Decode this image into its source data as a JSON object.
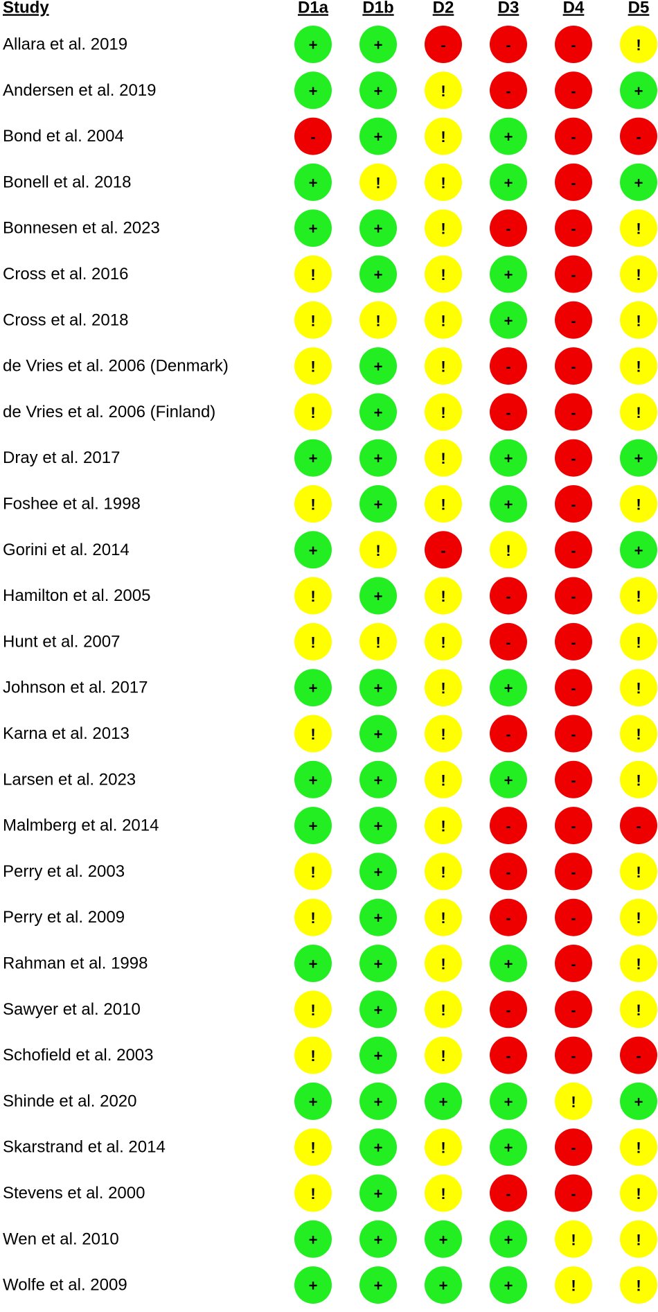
{
  "chart_data": {
    "type": "table",
    "columns": [
      "Study",
      "D1a",
      "D1b",
      "D2",
      "D3",
      "D4",
      "D5"
    ],
    "symbols": {
      "low": "+",
      "some": "!",
      "high": "-"
    },
    "colors": {
      "low": "#22ee22",
      "some": "#ffff00",
      "high": "#ee0000"
    },
    "rows": [
      {
        "study": "Allara et al. 2019",
        "ratings": [
          "low",
          "low",
          "high",
          "high",
          "high",
          "some"
        ]
      },
      {
        "study": "Andersen et al. 2019",
        "ratings": [
          "low",
          "low",
          "some",
          "high",
          "high",
          "low"
        ]
      },
      {
        "study": "Bond et al. 2004",
        "ratings": [
          "high",
          "low",
          "some",
          "low",
          "high",
          "high"
        ]
      },
      {
        "study": "Bonell et al. 2018",
        "ratings": [
          "low",
          "some",
          "some",
          "low",
          "high",
          "low"
        ]
      },
      {
        "study": "Bonnesen et al. 2023",
        "ratings": [
          "low",
          "low",
          "some",
          "high",
          "high",
          "some"
        ]
      },
      {
        "study": "Cross et al. 2016",
        "ratings": [
          "some",
          "low",
          "some",
          "low",
          "high",
          "some"
        ]
      },
      {
        "study": "Cross et al. 2018",
        "ratings": [
          "some",
          "some",
          "some",
          "low",
          "high",
          "some"
        ]
      },
      {
        "study": "de Vries et al. 2006 (Denmark)",
        "ratings": [
          "some",
          "low",
          "some",
          "high",
          "high",
          "some"
        ]
      },
      {
        "study": "de Vries et al. 2006 (Finland)",
        "ratings": [
          "some",
          "low",
          "some",
          "high",
          "high",
          "some"
        ]
      },
      {
        "study": "Dray et al. 2017",
        "ratings": [
          "low",
          "low",
          "some",
          "low",
          "high",
          "low"
        ]
      },
      {
        "study": "Foshee et al. 1998",
        "ratings": [
          "some",
          "low",
          "some",
          "low",
          "high",
          "some"
        ]
      },
      {
        "study": "Gorini et al. 2014",
        "ratings": [
          "low",
          "some",
          "high",
          "some",
          "high",
          "low"
        ]
      },
      {
        "study": "Hamilton et al. 2005",
        "ratings": [
          "some",
          "low",
          "some",
          "high",
          "high",
          "some"
        ]
      },
      {
        "study": "Hunt et al. 2007",
        "ratings": [
          "some",
          "some",
          "some",
          "high",
          "high",
          "some"
        ]
      },
      {
        "study": "Johnson et al. 2017",
        "ratings": [
          "low",
          "low",
          "some",
          "low",
          "high",
          "some"
        ]
      },
      {
        "study": "Karna et al. 2013",
        "ratings": [
          "some",
          "low",
          "some",
          "high",
          "high",
          "some"
        ]
      },
      {
        "study": "Larsen et al. 2023",
        "ratings": [
          "low",
          "low",
          "some",
          "low",
          "high",
          "some"
        ]
      },
      {
        "study": "Malmberg et al. 2014",
        "ratings": [
          "low",
          "low",
          "some",
          "high",
          "high",
          "high"
        ]
      },
      {
        "study": "Perry et al. 2003",
        "ratings": [
          "some",
          "low",
          "some",
          "high",
          "high",
          "some"
        ]
      },
      {
        "study": "Perry et al. 2009",
        "ratings": [
          "some",
          "low",
          "some",
          "high",
          "high",
          "some"
        ]
      },
      {
        "study": "Rahman et al. 1998",
        "ratings": [
          "low",
          "low",
          "some",
          "low",
          "high",
          "some"
        ]
      },
      {
        "study": "Sawyer et al. 2010",
        "ratings": [
          "some",
          "low",
          "some",
          "high",
          "high",
          "some"
        ]
      },
      {
        "study": "Schofield et al. 2003",
        "ratings": [
          "some",
          "low",
          "some",
          "high",
          "high",
          "high"
        ]
      },
      {
        "study": "Shinde et al. 2020",
        "ratings": [
          "low",
          "low",
          "low",
          "low",
          "some",
          "low"
        ]
      },
      {
        "study": "Skarstrand et al. 2014",
        "ratings": [
          "some",
          "low",
          "some",
          "low",
          "high",
          "some"
        ]
      },
      {
        "study": "Stevens et al. 2000",
        "ratings": [
          "some",
          "low",
          "some",
          "high",
          "high",
          "some"
        ]
      },
      {
        "study": "Wen et al. 2010",
        "ratings": [
          "low",
          "low",
          "low",
          "low",
          "some",
          "some"
        ]
      },
      {
        "study": "Wolfe et al. 2009",
        "ratings": [
          "low",
          "low",
          "low",
          "low",
          "some",
          "some"
        ]
      }
    ]
  }
}
